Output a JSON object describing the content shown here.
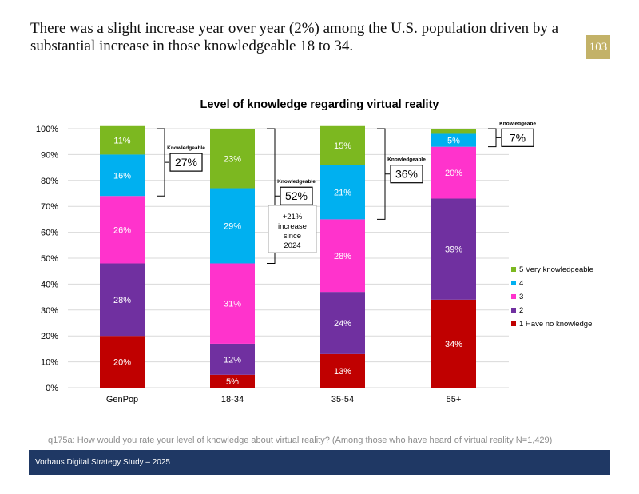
{
  "header": {
    "headline": "There was a slight increase year over year (2%) among the U.S. population driven by a substantial increase in those knowledgeable 18 to 34.",
    "page_number": "103"
  },
  "colors": {
    "accent_gold": "#c3b268",
    "footer_navy": "#1f3864",
    "level_1": "#c00000",
    "level_2": "#7030a0",
    "level_3": "#ff33cc",
    "level_4": "#00b0f0",
    "level_5": "#7cb820"
  },
  "chart_data": {
    "type": "bar",
    "stacked": true,
    "title": "Level of knowledge regarding virtual reality",
    "categories": [
      "GenPop",
      "18-34",
      "35-54",
      "55+"
    ],
    "series": [
      {
        "name": "1 Have no knowledge",
        "values": [
          20,
          5,
          13,
          34
        ],
        "labels": [
          "20%",
          "5%",
          "13%",
          "34%"
        ]
      },
      {
        "name": "2",
        "values": [
          28,
          12,
          24,
          39
        ],
        "labels": [
          "28%",
          "12%",
          "24%",
          "39%"
        ]
      },
      {
        "name": "3",
        "values": [
          26,
          31,
          28,
          20
        ],
        "labels": [
          "26%",
          "31%",
          "28%",
          "20%"
        ]
      },
      {
        "name": "4",
        "values": [
          16,
          29,
          21,
          5
        ],
        "labels": [
          "16%",
          "29%",
          "21%",
          "5%"
        ]
      },
      {
        "name": "5 Very knowledgeable",
        "values": [
          11,
          23,
          15,
          2
        ],
        "labels": [
          "11%",
          "23%",
          "15%",
          ""
        ]
      }
    ],
    "yticks": [
      "0%",
      "10%",
      "20%",
      "30%",
      "40%",
      "50%",
      "60%",
      "70%",
      "80%",
      "90%",
      "100%"
    ],
    "ylim": [
      0,
      100
    ],
    "grid": true,
    "legend_position": "right",
    "knowledgeable": {
      "label": "Knowledgeable",
      "label_alt": "Knowledgeabe",
      "values": [
        "27%",
        "52%",
        "36%",
        "7%"
      ]
    },
    "annotation": [
      "+21%",
      "increase",
      "since",
      "2024"
    ]
  },
  "footnote": "q175a: How would you rate your level of knowledge about virtual reality? (Among those who have heard of virtual reality N=1,429)",
  "footer": "Vorhaus Digital Strategy Study – 2025"
}
